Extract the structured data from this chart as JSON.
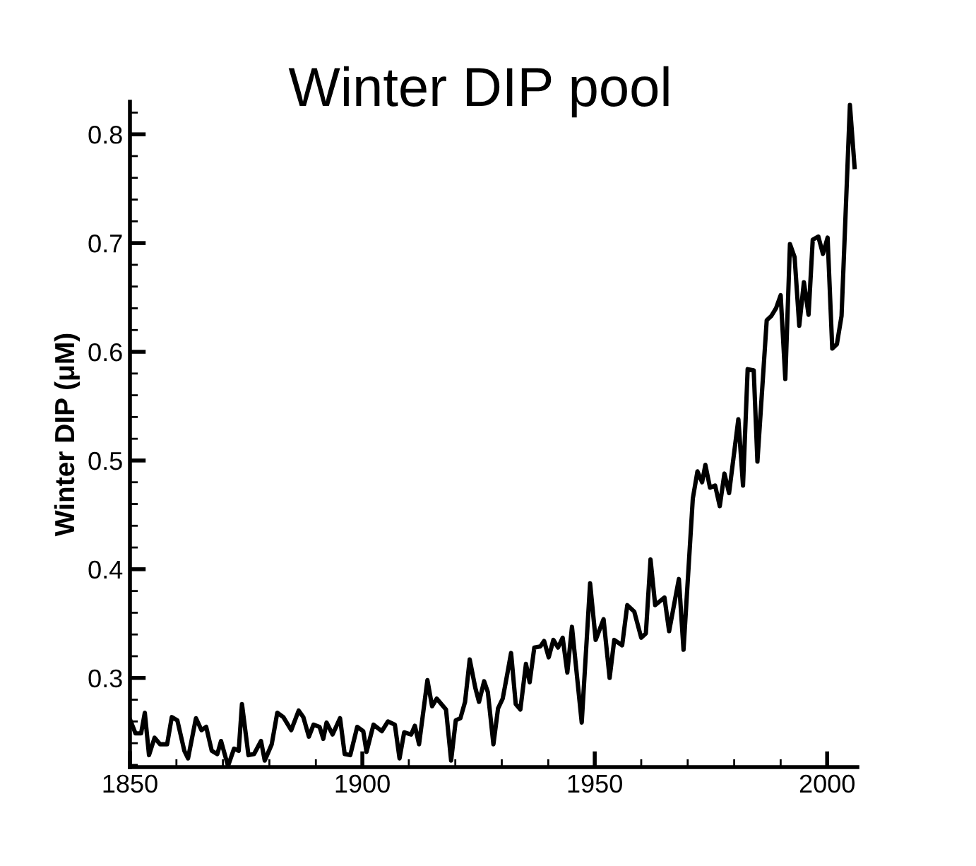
{
  "chart_data": {
    "type": "line",
    "title": "Winter DIP pool",
    "ylabel": "Winter DIP (μM)",
    "series": [
      {
        "color": "#000000",
        "x": [
          1850.1,
          1851.2,
          1852.4,
          1853.2,
          1854.1,
          1855.3,
          1856.5,
          1858,
          1859,
          1860.2,
          1861.7,
          1862.5,
          1864.2,
          1865.4,
          1866.4,
          1867.6,
          1868.8,
          1869.6,
          1871.1,
          1872.4,
          1873.4,
          1874.1,
          1875.5,
          1876.7,
          1878.2,
          1879,
          1880.5,
          1881.7,
          1883,
          1884.7,
          1886.3,
          1887.3,
          1888.5,
          1889.5,
          1890.8,
          1891.6,
          1892.3,
          1893.6,
          1895.2,
          1896.2,
          1897.4,
          1898.9,
          1900.2,
          1900.9,
          1902.4,
          1904.2,
          1905.5,
          1907,
          1908,
          1909,
          1910.5,
          1911.3,
          1912.2,
          1914,
          1915,
          1916,
          1918,
          1919.1,
          1920.1,
          1921.1,
          1922.1,
          1923.1,
          1924.3,
          1925.1,
          1926.2,
          1927,
          1928.2,
          1929.2,
          1930.2,
          1931.2,
          1932,
          1933,
          1934,
          1935.2,
          1936,
          1937,
          1938.3,
          1939.1,
          1940.1,
          1941.1,
          1942.1,
          1943.1,
          1944.1,
          1945.1,
          1947.2,
          1949,
          1950.2,
          1951.9,
          1953.2,
          1954.2,
          1955.9,
          1957,
          1958.5,
          1960,
          1961,
          1962,
          1963,
          1965,
          1966,
          1968.1,
          1969.1,
          1971.1,
          1972.1,
          1973.1,
          1973.8,
          1974.8,
          1975.9,
          1976.9,
          1977.9,
          1978.9,
          1980.9,
          1981.9,
          1982.9,
          1984.2,
          1985,
          1987,
          1988,
          1989,
          1990,
          1991,
          1992,
          1993,
          1994,
          1995,
          1996,
          1996.9,
          1998.1,
          1999.1,
          2000.1,
          2001.1,
          2002.1,
          2003.1,
          2004.9,
          2005.9
        ],
        "values": [
          0.261,
          0.249,
          0.249,
          0.268,
          0.229,
          0.245,
          0.239,
          0.239,
          0.264,
          0.261,
          0.233,
          0.226,
          0.263,
          0.252,
          0.255,
          0.233,
          0.23,
          0.242,
          0.219,
          0.235,
          0.233,
          0.276,
          0.229,
          0.23,
          0.242,
          0.224,
          0.239,
          0.268,
          0.264,
          0.252,
          0.27,
          0.264,
          0.246,
          0.257,
          0.255,
          0.244,
          0.259,
          0.248,
          0.263,
          0.23,
          0.229,
          0.255,
          0.251,
          0.232,
          0.257,
          0.251,
          0.26,
          0.257,
          0.226,
          0.25,
          0.248,
          0.256,
          0.239,
          0.298,
          0.274,
          0.281,
          0.271,
          0.224,
          0.261,
          0.263,
          0.278,
          0.317,
          0.291,
          0.278,
          0.297,
          0.287,
          0.239,
          0.272,
          0.281,
          0.304,
          0.323,
          0.276,
          0.271,
          0.313,
          0.296,
          0.328,
          0.329,
          0.334,
          0.319,
          0.335,
          0.328,
          0.337,
          0.305,
          0.347,
          0.259,
          0.387,
          0.335,
          0.354,
          0.3,
          0.335,
          0.33,
          0.367,
          0.361,
          0.337,
          0.341,
          0.409,
          0.367,
          0.374,
          0.343,
          0.391,
          0.326,
          0.465,
          0.49,
          0.48,
          0.496,
          0.475,
          0.477,
          0.458,
          0.488,
          0.47,
          0.538,
          0.477,
          0.584,
          0.583,
          0.499,
          0.629,
          0.633,
          0.64,
          0.652,
          0.575,
          0.699,
          0.687,
          0.624,
          0.664,
          0.634,
          0.703,
          0.706,
          0.69,
          0.705,
          0.603,
          0.607,
          0.633,
          0.827,
          0.77
        ]
      }
    ],
    "xlim": [
      1850,
      2006.5
    ],
    "xticks": [
      1850,
      1900,
      1950,
      2000
    ],
    "ylim": [
      0.218,
      0.83
    ],
    "yticks": [
      0.3,
      0.4,
      0.5,
      0.6,
      0.7,
      0.8
    ],
    "grid": false,
    "legend": false,
    "marker": "none",
    "line_style": "solid"
  }
}
